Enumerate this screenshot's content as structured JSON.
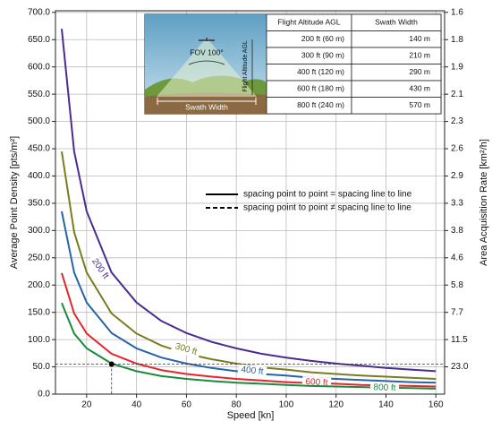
{
  "chart_data": {
    "type": "line",
    "x_label": "Speed [kn]",
    "y_label": "Average Point Density [pts/m²]",
    "y2_label": "Area Acquisition Rate [km²/h]",
    "x": [
      10,
      15,
      20,
      30,
      40,
      50,
      60,
      70,
      80,
      90,
      100,
      110,
      120,
      130,
      140,
      150,
      160
    ],
    "series": [
      {
        "name": "200 ft",
        "color": "#4a2d8f",
        "values": [
          670,
          445,
          335,
          223,
          168,
          134,
          112,
          96,
          84,
          74,
          67,
          61,
          56,
          52,
          48,
          45,
          42
        ]
      },
      {
        "name": "300 ft",
        "color": "#7b7b1f",
        "values": [
          445,
          297,
          223,
          148,
          111,
          89,
          74,
          64,
          56,
          49,
          45,
          40,
          37,
          34,
          32,
          30,
          28
        ]
      },
      {
        "name": "400 ft",
        "color": "#2762aa",
        "values": [
          335,
          223,
          168,
          112,
          84,
          67,
          56,
          48,
          42,
          37,
          34,
          30,
          28,
          26,
          24,
          22,
          21
        ]
      },
      {
        "name": "600 ft",
        "color": "#e2262b",
        "values": [
          222,
          148,
          111,
          74,
          56,
          44,
          37,
          32,
          28,
          25,
          22,
          20,
          19,
          17,
          16,
          15,
          14
        ]
      },
      {
        "name": "800 ft",
        "color": "#1b8a3c",
        "values": [
          167,
          111,
          84,
          56,
          42,
          33,
          28,
          24,
          21,
          19,
          17,
          15,
          14,
          13,
          12,
          11,
          10
        ]
      }
    ],
    "xlim": [
      7.5,
      163.5
    ],
    "xticks": [
      20,
      40,
      60,
      80,
      100,
      120,
      140,
      160
    ],
    "ylim": [
      0,
      703
    ],
    "yticks": [
      {
        "value": 0,
        "label": "0.0"
      },
      {
        "value": 50,
        "label": "50.0"
      },
      {
        "value": 100,
        "label": "100.0"
      },
      {
        "value": 150,
        "label": "150.0"
      },
      {
        "value": 200,
        "label": "200.0"
      },
      {
        "value": 250,
        "label": "250.0"
      },
      {
        "value": 300,
        "label": "300.0"
      },
      {
        "value": 350,
        "label": "350.0"
      },
      {
        "value": 400,
        "label": "400.0"
      },
      {
        "value": 450,
        "label": "450.0"
      },
      {
        "value": 500,
        "label": "500.0"
      },
      {
        "value": 550,
        "label": "550.0"
      },
      {
        "value": 600,
        "label": "600.0"
      },
      {
        "value": 650,
        "label": "650.0"
      },
      {
        "value": 700,
        "label": "700.0"
      }
    ],
    "y2ticks": [
      {
        "value": 23,
        "label": "23.0"
      },
      11.5,
      7.7,
      5.8,
      4.6,
      3.8,
      3.3,
      2.9,
      2.6,
      2.3,
      2.1,
      1.9,
      1.8,
      1.6
    ],
    "grid": true,
    "marker": {
      "x": 30,
      "y": 55
    },
    "legend": [
      {
        "label": "spacing point to point = spacing line to line",
        "style": "solid"
      },
      {
        "label": "spacing point to point ≠ spacing line to line",
        "style": "dashed"
      }
    ],
    "inset": {
      "fov_label": "FOV 100°",
      "altitude_label": "Flight Altitude AGL",
      "swath_label": "Swath Width",
      "table": {
        "header": [
          "Flight Altitude AGL",
          "Swath Width"
        ],
        "rows": [
          [
            "200 ft (60 m)",
            "140 m"
          ],
          [
            "300 ft (90 m)",
            "210 m"
          ],
          [
            "400 ft (120 m)",
            "290 m"
          ],
          [
            "600 ft (180 m)",
            "430 m"
          ],
          [
            "800 ft (240 m)",
            "570 m"
          ]
        ]
      }
    }
  }
}
